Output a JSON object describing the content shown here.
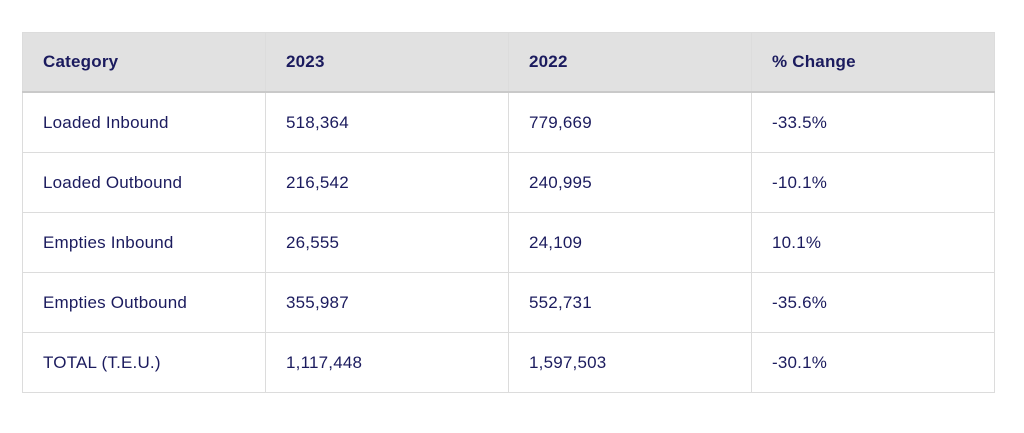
{
  "chart_data": {
    "type": "table",
    "columns": [
      "Category",
      "2023",
      "2022",
      "% Change"
    ],
    "rows": [
      [
        "Loaded Inbound",
        "518,364",
        "779,669",
        "-33.5%"
      ],
      [
        "Loaded Outbound",
        "216,542",
        "240,995",
        "-10.1%"
      ],
      [
        "Empties Inbound",
        "26,555",
        "24,109",
        "10.1%"
      ],
      [
        "Empties Outbound",
        "355,987",
        "552,731",
        "-35.6%"
      ],
      [
        "TOTAL (T.E.U.)",
        "1,117,448",
        "1,597,503",
        "-30.1%"
      ]
    ],
    "numeric_rows": [
      {
        "category": "Loaded Inbound",
        "y2023": 518364,
        "y2022": 779669,
        "pct_change": -33.5
      },
      {
        "category": "Loaded Outbound",
        "y2023": 216542,
        "y2022": 240995,
        "pct_change": -10.1
      },
      {
        "category": "Empties Inbound",
        "y2023": 26555,
        "y2022": 24109,
        "pct_change": 10.1
      },
      {
        "category": "Empties Outbound",
        "y2023": 355987,
        "y2022": 552731,
        "pct_change": -35.6
      },
      {
        "category": "TOTAL (T.E.U.)",
        "y2023": 1117448,
        "y2022": 1597503,
        "pct_change": -30.1
      }
    ]
  },
  "colors": {
    "text": "#1b1b5e",
    "header_background": "#e1e1e1",
    "cell_border": "#dcdcdc",
    "header_bottom_border": "#c9c9c9",
    "page_background": "#ffffff"
  }
}
